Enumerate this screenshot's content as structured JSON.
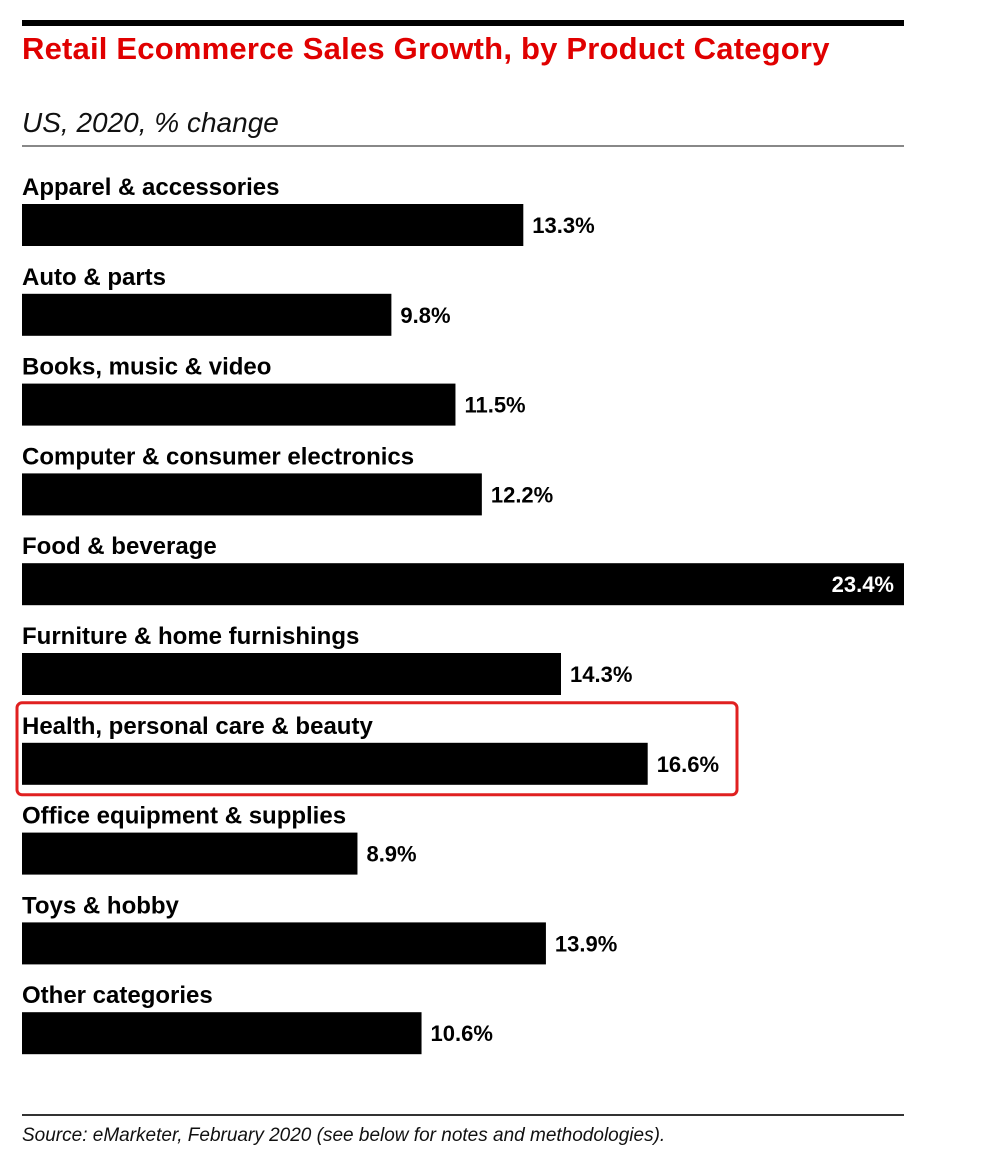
{
  "colors": {
    "title": "#e00000",
    "bar": "#000000",
    "label_in_bar": "#ffffff",
    "highlight_box": "#e02020"
  },
  "chart_data": {
    "type": "bar",
    "orientation": "horizontal",
    "title": "Retail Ecommerce Sales Growth, by Product Category",
    "subtitle": "US, 2020, % change",
    "source": "Source: eMarketer, February 2020 (see below for notes and methodologies).",
    "categories": [
      "Apparel & accessories",
      "Auto & parts",
      "Books, music & video",
      "Computer & consumer electronics",
      "Food & beverage",
      "Furniture & home furnishings",
      "Health, personal care & beauty",
      "Office equipment & supplies",
      "Toys & hobby",
      "Other categories"
    ],
    "values": [
      13.3,
      9.8,
      11.5,
      12.2,
      23.4,
      14.3,
      16.6,
      8.9,
      13.9,
      10.6
    ],
    "value_labels": [
      "13.3%",
      "9.8%",
      "11.5%",
      "12.2%",
      "23.4%",
      "14.3%",
      "16.6%",
      "8.9%",
      "13.9%",
      "10.6%"
    ],
    "xlim": [
      0,
      23.4
    ],
    "grid": false,
    "legend": "none",
    "highlighted_category": "Health, personal care & beauty"
  }
}
